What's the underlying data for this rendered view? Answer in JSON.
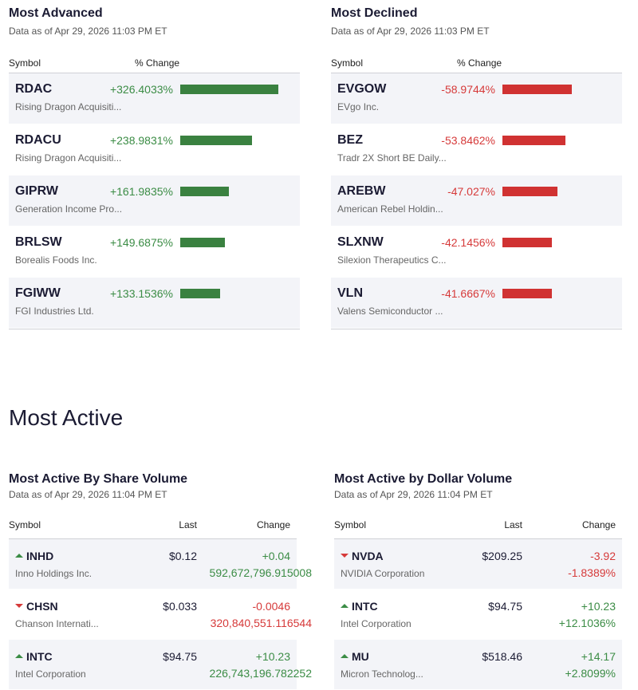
{
  "advanced": {
    "title": "Most Advanced",
    "subtitle": "Data as of Apr 29, 2026 11:03 PM ET",
    "col_symbol": "Symbol",
    "col_change": "% Change",
    "bar_color": "#3a8140",
    "rows": [
      {
        "symbol": "RDAC",
        "name": "Rising Dragon Acquisiti...",
        "change": "+326.4033%",
        "value": 326.4033
      },
      {
        "symbol": "RDACU",
        "name": "Rising Dragon Acquisiti...",
        "change": "+238.9831%",
        "value": 238.9831
      },
      {
        "symbol": "GIPRW",
        "name": "Generation Income Pro...",
        "change": "+161.9835%",
        "value": 161.9835
      },
      {
        "symbol": "BRLSW",
        "name": "Borealis Foods Inc.",
        "change": "+149.6875%",
        "value": 149.6875
      },
      {
        "symbol": "FGIWW",
        "name": "FGI Industries Ltd.",
        "change": "+133.1536%",
        "value": 133.1536
      }
    ]
  },
  "declined": {
    "title": "Most Declined",
    "subtitle": "Data as of Apr 29, 2026 11:03 PM ET",
    "col_symbol": "Symbol",
    "col_change": "% Change",
    "bar_color": "#d03232",
    "rows": [
      {
        "symbol": "EVGOW",
        "name": "EVgo Inc.",
        "change": "-58.9744%",
        "value": 58.9744
      },
      {
        "symbol": "BEZ",
        "name": "Tradr 2X Short BE Daily...",
        "change": "-53.8462%",
        "value": 53.8462
      },
      {
        "symbol": "AREBW",
        "name": "American Rebel Holdin...",
        "change": "-47.027%",
        "value": 47.027
      },
      {
        "symbol": "SLXNW",
        "name": "Silexion Therapeutics C...",
        "change": "-42.1456%",
        "value": 42.1456
      },
      {
        "symbol": "VLN",
        "name": "Valens Semiconductor ...",
        "change": "-41.6667%",
        "value": 41.6667
      }
    ]
  },
  "most_active": {
    "heading": "Most Active",
    "share": {
      "title": "Most Active By Share Volume",
      "subtitle": "Data as of Apr 29, 2026 11:04 PM ET",
      "col_symbol": "Symbol",
      "col_last": "Last",
      "col_change": "Change",
      "rows": [
        {
          "symbol": "INHD",
          "name": "Inno Holdings Inc.",
          "last": "$0.12",
          "change": "+0.04",
          "extra": "592,672,796.915008",
          "dir": "up"
        },
        {
          "symbol": "CHSN",
          "name": "Chanson Internati...",
          "last": "$0.033",
          "change": "-0.0046",
          "extra": "320,840,551.116544",
          "dir": "down"
        },
        {
          "symbol": "INTC",
          "name": "Intel Corporation",
          "last": "$94.75",
          "change": "+10.23",
          "extra": "226,743,196.782252",
          "dir": "up"
        }
      ]
    },
    "dollar": {
      "title": "Most Active by Dollar Volume",
      "subtitle": "Data as of Apr 29, 2026 11:04 PM ET",
      "col_symbol": "Symbol",
      "col_last": "Last",
      "col_change": "Change",
      "rows": [
        {
          "symbol": "NVDA",
          "name": "NVIDIA Corporation",
          "last": "$209.25",
          "change": "-3.92",
          "extra": "-1.8389%",
          "dir": "down"
        },
        {
          "symbol": "INTC",
          "name": "Intel Corporation",
          "last": "$94.75",
          "change": "+10.23",
          "extra": "+12.1036%",
          "dir": "up"
        },
        {
          "symbol": "MU",
          "name": "Micron Technolog...",
          "last": "$518.46",
          "change": "+14.17",
          "extra": "+2.8099%",
          "dir": "up"
        }
      ]
    }
  }
}
